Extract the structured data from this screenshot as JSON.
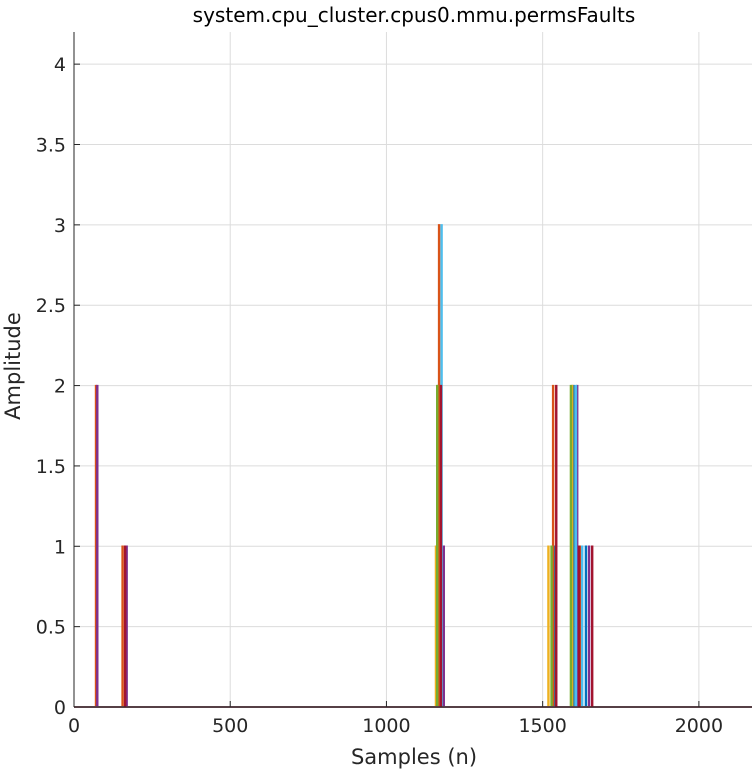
{
  "chart_data": {
    "type": "line",
    "title": "system.cpu_cluster.cpus0.mmu.permsFaults",
    "xlabel": "Samples (n)",
    "ylabel": "Amplitude",
    "xlim": [
      0,
      2170
    ],
    "ylim": [
      0,
      4.2
    ],
    "xticks": [
      0,
      500,
      1000,
      1500,
      2000
    ],
    "xtick_labels": [
      "0",
      "500",
      "1000",
      "1500",
      "2000"
    ],
    "yticks": [
      0,
      0.5,
      1,
      1.5,
      2,
      2.5,
      3,
      3.5,
      4
    ],
    "ytick_labels": [
      "0",
      "0.5",
      "1",
      "1.5",
      "2",
      "2.5",
      "3",
      "3.5",
      "4"
    ],
    "grid": true,
    "series": [
      {
        "color": "#0072bd",
        "spikes": [
          [
            1168,
            2
          ],
          [
            1540,
            1
          ],
          [
            1600,
            2
          ],
          [
            1640,
            1
          ]
        ]
      },
      {
        "color": "#d95319",
        "spikes": [
          [
            72,
            2
          ],
          [
            157,
            1
          ],
          [
            1170,
            3
          ],
          [
            1535,
            2
          ],
          [
            1622,
            1
          ]
        ]
      },
      {
        "color": "#edb120",
        "spikes": [
          [
            1160,
            1
          ],
          [
            1520,
            1
          ],
          [
            1596,
            2
          ]
        ]
      },
      {
        "color": "#7e2f8e",
        "spikes": [
          [
            76,
            2
          ],
          [
            170,
            1
          ],
          [
            1185,
            1
          ],
          [
            1612,
            2
          ],
          [
            1650,
            1
          ]
        ]
      },
      {
        "color": "#77ac30",
        "spikes": [
          [
            1164,
            2
          ],
          [
            1530,
            1
          ],
          [
            1592,
            2
          ]
        ]
      },
      {
        "color": "#4dbeee",
        "spikes": [
          [
            1178,
            3
          ],
          [
            1608,
            2
          ],
          [
            1628,
            1
          ]
        ]
      },
      {
        "color": "#a2142f",
        "spikes": [
          [
            165,
            1
          ],
          [
            1176,
            2
          ],
          [
            1545,
            2
          ],
          [
            1618,
            1
          ],
          [
            1660,
            1
          ]
        ]
      }
    ]
  }
}
